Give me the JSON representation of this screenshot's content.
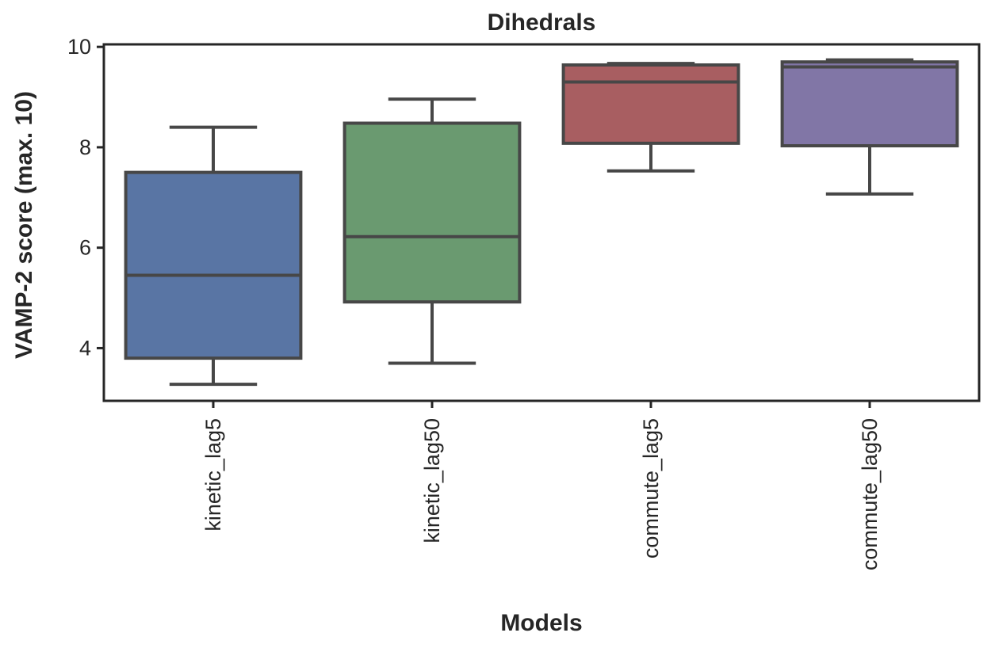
{
  "chart_data": {
    "type": "box",
    "title": "Dihedrals",
    "xlabel": "Models",
    "ylabel": "VAMP-2 score (max. 10)",
    "ylim": [
      2.95,
      10.05
    ],
    "yticks": [
      4,
      6,
      8,
      10
    ],
    "grid": false,
    "legend": "none",
    "categories": [
      "kinetic_lag5",
      "kinetic_lag50",
      "commute_lag5",
      "commute_lag50"
    ],
    "boxes": [
      {
        "category": "kinetic_lag5",
        "whisker_low": 3.28,
        "q1": 3.8,
        "median": 5.45,
        "q3": 7.5,
        "whisker_high": 8.4,
        "color": "#5975a4"
      },
      {
        "category": "kinetic_lag50",
        "whisker_low": 3.7,
        "q1": 4.92,
        "median": 6.22,
        "q3": 8.48,
        "whisker_high": 8.96,
        "color": "#6a9a70"
      },
      {
        "category": "commute_lag5",
        "whisker_low": 7.53,
        "q1": 8.08,
        "median": 9.3,
        "q3": 9.64,
        "whisker_high": 9.67,
        "color": "#a85e61"
      },
      {
        "category": "commute_lag50",
        "whisker_low": 7.07,
        "q1": 8.03,
        "median": 9.6,
        "q3": 9.7,
        "whisker_high": 9.74,
        "color": "#8176a6"
      }
    ],
    "line_color": "#474747"
  }
}
